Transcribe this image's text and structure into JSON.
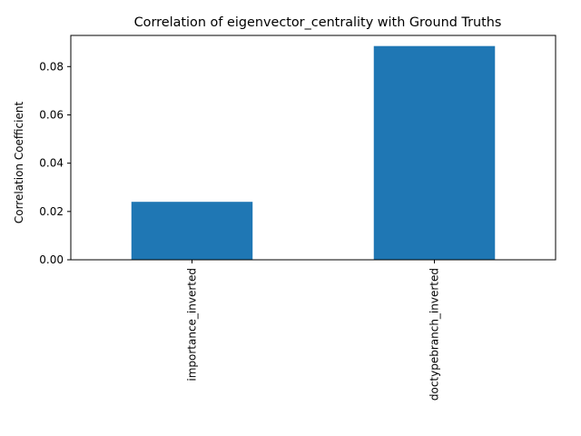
{
  "chart_data": {
    "type": "bar",
    "title": "Correlation of eigenvector_centrality with Ground Truths",
    "xlabel": "",
    "ylabel": "Correlation Coefficient",
    "categories": [
      "importance_inverted",
      "doctypebranch_inverted"
    ],
    "values": [
      0.024,
      0.0885
    ],
    "yticks": [
      "0.00",
      "0.02",
      "0.04",
      "0.06",
      "0.08"
    ],
    "ylim": [
      0,
      0.0929
    ],
    "bar_color": "#1f77b4",
    "grid": false,
    "legend": "none"
  }
}
